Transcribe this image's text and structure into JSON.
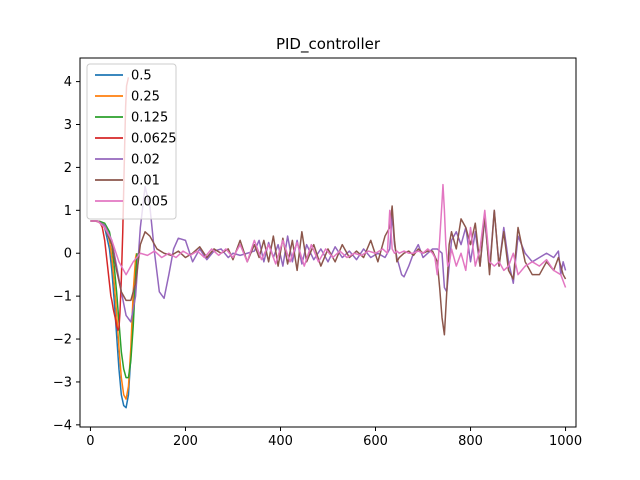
{
  "chart_data": {
    "type": "line",
    "title": "PID_controller",
    "xlabel": "",
    "ylabel": "",
    "xlim": [
      -22,
      1022
    ],
    "ylim": [
      -4.05,
      4.55
    ],
    "xticks": [
      0,
      200,
      400,
      600,
      800,
      1000
    ],
    "yticks": [
      -4,
      -3,
      -2,
      -1,
      0,
      1,
      2,
      3,
      4
    ],
    "grid": false,
    "legend_position": "top-left",
    "series": [
      {
        "name": "0.5",
        "color": "#1f77b4",
        "x": [
          0,
          10,
          20,
          30,
          40,
          45,
          50,
          55,
          60,
          65,
          70,
          75,
          80,
          85,
          90,
          95
        ],
        "y": [
          0.75,
          0.75,
          0.73,
          0.6,
          0.1,
          -0.4,
          -1.1,
          -1.9,
          -2.7,
          -3.3,
          -3.55,
          -3.6,
          -3.3,
          -2.4,
          -1.1,
          -0.3
        ]
      },
      {
        "name": "0.25",
        "color": "#ff7f0e",
        "x": [
          0,
          10,
          20,
          30,
          40,
          45,
          50,
          55,
          60,
          65,
          70,
          75,
          80,
          85,
          90,
          95,
          97
        ],
        "y": [
          0.75,
          0.75,
          0.74,
          0.65,
          0.3,
          -0.1,
          -0.7,
          -1.4,
          -2.2,
          -2.9,
          -3.3,
          -3.4,
          -3.1,
          -2.2,
          -0.9,
          -0.1,
          0
        ]
      },
      {
        "name": "0.125",
        "color": "#2ca02c",
        "x": [
          0,
          10,
          20,
          30,
          40,
          45,
          50,
          55,
          60,
          65,
          70,
          75,
          80,
          85,
          90,
          95,
          98
        ],
        "y": [
          0.75,
          0.75,
          0.74,
          0.7,
          0.5,
          0.2,
          -0.3,
          -0.9,
          -1.6,
          -2.3,
          -2.7,
          -2.9,
          -2.9,
          -2.5,
          -1.7,
          -0.6,
          0
        ]
      },
      {
        "name": "0.0625",
        "color": "#d62728",
        "x": [
          0,
          10,
          20,
          25,
          30,
          35,
          40,
          43,
          45,
          48,
          50,
          53,
          55,
          58,
          60,
          62,
          65,
          68,
          70,
          72,
          74,
          76,
          78,
          80
        ],
        "y": [
          0.75,
          0.75,
          0.72,
          0.6,
          0.3,
          -0.2,
          -0.7,
          -1.0,
          -1.1,
          -1.3,
          -1.4,
          -1.55,
          -1.7,
          -1.8,
          -1.75,
          -1.4,
          -0.6,
          0.5,
          1.5,
          2.5,
          3.4,
          3.9,
          4.0,
          4.1
        ]
      },
      {
        "name": "0.02",
        "color": "#9467bd",
        "x": [
          0,
          15,
          30,
          45,
          55,
          65,
          75,
          85,
          95,
          105,
          115,
          125,
          135,
          145,
          155,
          165,
          175,
          185,
          200,
          215,
          230,
          245,
          260,
          275,
          290,
          300,
          315,
          330,
          345,
          355,
          365,
          375,
          385,
          395,
          405,
          415,
          425,
          435,
          445,
          455,
          470,
          485,
          500,
          515,
          530,
          545,
          560,
          575,
          590,
          605,
          620,
          630,
          635,
          640,
          645,
          650,
          655,
          660,
          670,
          680,
          690,
          700,
          710,
          720,
          730,
          740,
          745,
          750,
          760,
          770,
          780,
          790,
          800,
          810,
          820,
          830,
          840,
          850,
          860,
          870,
          880,
          890,
          900,
          915,
          930,
          945,
          960,
          975,
          985,
          990,
          995,
          1000
        ],
        "y": [
          0.75,
          0.75,
          0.65,
          0.3,
          -0.3,
          -0.9,
          -1.45,
          -1.6,
          -1.0,
          0.6,
          1.55,
          1.1,
          0.0,
          -0.9,
          -1.05,
          -0.5,
          0.1,
          0.35,
          0.3,
          -0.2,
          0.1,
          -0.15,
          0.05,
          0.1,
          -0.1,
          0.0,
          -0.05,
          0.0,
          0.05,
          0.3,
          -0.2,
          0.25,
          -0.1,
          0.2,
          -0.3,
          0.4,
          -0.2,
          0.3,
          -0.25,
          0.2,
          -0.15,
          0.1,
          -0.2,
          0.15,
          -0.1,
          0.05,
          -0.15,
          0.1,
          -0.1,
          0.0,
          -0.1,
          0.1,
          0.9,
          0.2,
          -0.1,
          -0.3,
          -0.5,
          -0.55,
          -0.3,
          0.0,
          0.2,
          -0.1,
          0.0,
          0.1,
          0.1,
          0.0,
          -0.8,
          -0.9,
          0.3,
          0.5,
          0.2,
          0.6,
          -0.2,
          0.5,
          -0.3,
          0.8,
          -0.4,
          1.0,
          -0.3,
          0.6,
          -0.2,
          -0.7,
          0.4,
          0.0,
          -0.2,
          -0.1,
          0.0,
          -0.1,
          0.05,
          -0.5,
          -0.2,
          -0.4
        ]
      },
      {
        "name": "0.01",
        "color": "#8c564b",
        "x": [
          0,
          15,
          30,
          45,
          55,
          65,
          75,
          85,
          95,
          105,
          115,
          125,
          140,
          155,
          170,
          185,
          200,
          215,
          230,
          245,
          260,
          275,
          290,
          300,
          315,
          330,
          345,
          355,
          365,
          375,
          385,
          395,
          405,
          415,
          425,
          435,
          445,
          455,
          470,
          485,
          500,
          515,
          530,
          545,
          560,
          575,
          590,
          605,
          620,
          630,
          635,
          640,
          645,
          650,
          660,
          670,
          680,
          690,
          700,
          710,
          720,
          730,
          735,
          740,
          745,
          750,
          755,
          760,
          770,
          780,
          790,
          800,
          810,
          820,
          830,
          840,
          850,
          860,
          870,
          880,
          890,
          900,
          915,
          930,
          945,
          960,
          975,
          985,
          995,
          1000
        ],
        "y": [
          0.75,
          0.75,
          0.6,
          0.2,
          -0.4,
          -0.9,
          -1.1,
          -1.1,
          -0.7,
          0.2,
          0.5,
          0.4,
          0.1,
          0.0,
          -0.05,
          0.05,
          -0.1,
          0.0,
          0.15,
          -0.1,
          0.1,
          0.0,
          0.1,
          -0.15,
          0.3,
          -0.2,
          0.2,
          -0.1,
          0.3,
          -0.2,
          0.4,
          -0.3,
          0.35,
          -0.25,
          0.3,
          -0.4,
          0.5,
          -0.2,
          0.2,
          -0.3,
          0.1,
          -0.2,
          0.2,
          -0.1,
          0.05,
          -0.1,
          0.3,
          -0.2,
          0.4,
          0.6,
          1.1,
          0.3,
          -0.2,
          -0.1,
          0.0,
          0.05,
          -0.05,
          0.1,
          0.0,
          0.05,
          0.05,
          -0.2,
          -0.8,
          -1.5,
          -1.9,
          -0.9,
          0.2,
          0.5,
          0.1,
          0.8,
          0.6,
          0.2,
          0.7,
          -0.3,
          0.9,
          -0.5,
          1.0,
          -0.3,
          0.5,
          -0.4,
          -0.6,
          0.6,
          -0.2,
          -0.5,
          -0.5,
          -0.2,
          -0.4,
          -0.1,
          -0.5,
          -0.6
        ]
      },
      {
        "name": "0.005",
        "color": "#e377c2",
        "x": [
          0,
          15,
          30,
          45,
          60,
          75,
          90,
          105,
          120,
          135,
          150,
          165,
          180,
          195,
          210,
          225,
          240,
          255,
          270,
          285,
          300,
          315,
          330,
          345,
          360,
          375,
          390,
          405,
          420,
          435,
          450,
          465,
          480,
          495,
          510,
          525,
          540,
          555,
          570,
          585,
          600,
          615,
          625,
          630,
          635,
          640,
          645,
          650,
          660,
          670,
          680,
          690,
          700,
          710,
          720,
          725,
          730,
          735,
          740,
          742,
          745,
          748,
          752,
          756,
          760,
          770,
          780,
          790,
          800,
          810,
          820,
          830,
          840,
          850,
          860,
          870,
          880,
          890,
          900,
          915,
          930,
          945,
          960,
          975,
          990,
          1000
        ],
        "y": [
          0.75,
          0.75,
          0.6,
          0.3,
          -0.2,
          -0.5,
          -0.2,
          0.0,
          -0.05,
          0.05,
          -0.1,
          0.0,
          -0.1,
          0.05,
          -0.05,
          0.05,
          -0.1,
          0.1,
          -0.05,
          0.1,
          -0.1,
          0.2,
          -0.2,
          0.3,
          -0.15,
          0.2,
          -0.25,
          0.3,
          -0.2,
          0.25,
          -0.3,
          0.2,
          -0.2,
          0.1,
          -0.1,
          0.05,
          -0.1,
          0.0,
          -0.05,
          0.05,
          0.0,
          0.1,
          0.0,
          1.0,
          0.1,
          0.0,
          0.05,
          0.0,
          0.05,
          0.0,
          0.0,
          0.05,
          0.0,
          0.1,
          0.0,
          -0.1,
          -0.5,
          0.3,
          1.2,
          1.6,
          1.0,
          0.2,
          -0.3,
          -0.2,
          0.1,
          -0.3,
          0.0,
          -0.4,
          0.6,
          -0.3,
          0.1,
          1.0,
          -0.2,
          -0.3,
          -0.2,
          -0.4,
          -0.3,
          0.0,
          -0.5,
          -0.3,
          -0.2,
          -0.3,
          -0.15,
          -0.4,
          -0.5,
          -0.8
        ]
      }
    ]
  }
}
